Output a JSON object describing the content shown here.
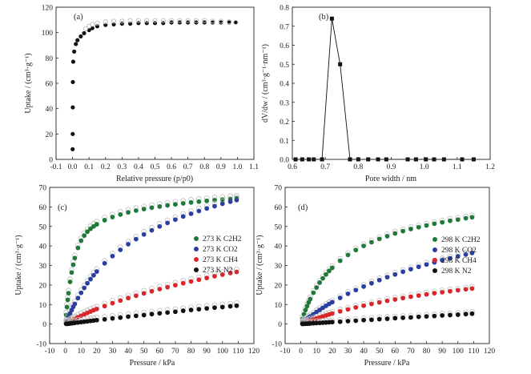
{
  "panels": [
    {
      "letter": "(a)",
      "xlabel": "Relative pressure (p/p0)",
      "ylabel": "Uptake / (cm³·g⁻¹)",
      "xticks": [
        "-0.1",
        "0.0",
        "0.1",
        "0.2",
        "0.3",
        "0.4",
        "0.5",
        "0.6",
        "0.7",
        "0.8",
        "0.9",
        "1.0",
        "1.1"
      ],
      "yticks": [
        "0",
        "20",
        "40",
        "60",
        "80",
        "100",
        "120"
      ]
    },
    {
      "letter": "(b)",
      "xlabel": "Pore width / nm",
      "ylabel": "dV/dw / (cm³·g⁻¹·nm⁻¹)",
      "xticks": [
        "0.6",
        "0.7",
        "0.8",
        "0.9",
        "1.0",
        "1.1",
        "1.2"
      ],
      "yticks": [
        "0.0",
        "0.1",
        "0.2",
        "0.3",
        "0.4",
        "0.5",
        "0.6",
        "0.7",
        "0.8"
      ]
    },
    {
      "letter": "(c)",
      "xlabel": "Pressure / kPa",
      "ylabel": "Uptake / (cm³·g⁻¹)",
      "xticks": [
        "-10",
        "0",
        "10",
        "20",
        "30",
        "40",
        "50",
        "60",
        "70",
        "80",
        "90",
        "100",
        "110",
        "120"
      ],
      "yticks": [
        "-10",
        "0",
        "10",
        "20",
        "30",
        "40",
        "50",
        "60",
        "70"
      ],
      "legend": [
        "273 K C2H2",
        "273 K CO2",
        "273 K CH4",
        "273 K N2"
      ]
    },
    {
      "letter": "(d)",
      "xlabel": "Pressure / kPa",
      "ylabel": "Uptake / (cm³·g⁻¹)",
      "xticks": [
        "-10",
        "0",
        "10",
        "20",
        "30",
        "40",
        "50",
        "60",
        "70",
        "80",
        "90",
        "100",
        "110",
        "120"
      ],
      "yticks": [
        "-10",
        "0",
        "10",
        "20",
        "30",
        "40",
        "50",
        "60",
        "70"
      ],
      "legend": [
        "298 K C2H2",
        "298 K CO2",
        "298 K CH4",
        "298 K N2"
      ]
    }
  ],
  "colors": {
    "black": "#111111",
    "green": "#1f7a3a",
    "blue": "#2a3fa0",
    "red": "#d8262b",
    "open": "#bdbdbd"
  },
  "chart_data": [
    {
      "panel": "a",
      "type": "scatter",
      "xlabel": "Relative pressure (p/p0)",
      "ylabel": "Uptake / (cm³·g⁻¹)",
      "xlim": [
        -0.1,
        1.1
      ],
      "ylim": [
        0,
        120
      ],
      "series": [
        {
          "marker": "filled",
          "color": "#111111",
          "x": [
            0.0005,
            0.001,
            0.0015,
            0.002,
            0.004,
            0.01,
            0.02,
            0.03,
            0.05,
            0.07,
            0.1,
            0.12,
            0.15,
            0.2,
            0.25,
            0.3,
            0.35,
            0.4,
            0.45,
            0.5,
            0.55,
            0.6,
            0.65,
            0.7,
            0.75,
            0.8,
            0.85,
            0.9,
            0.95,
            0.99
          ],
          "y": [
            8,
            20,
            41,
            61,
            77,
            85,
            91,
            94,
            97,
            99.5,
            102,
            103.5,
            105,
            106,
            106.5,
            107,
            107,
            107.5,
            107.5,
            107.5,
            107.5,
            108,
            108,
            108,
            108,
            108,
            108,
            108,
            108,
            108
          ]
        },
        {
          "marker": "open",
          "color": "#bdbdbd",
          "x": [
            0.99,
            0.95,
            0.9,
            0.85,
            0.8,
            0.75,
            0.7,
            0.65,
            0.6,
            0.55,
            0.5,
            0.45,
            0.4,
            0.35,
            0.3,
            0.25,
            0.2,
            0.15,
            0.12,
            0.1,
            0.08
          ],
          "y": [
            108,
            108.5,
            109,
            109,
            109.5,
            109.5,
            109.5,
            109.5,
            109.5,
            109.5,
            109.5,
            109.5,
            109.5,
            109.5,
            109,
            109,
            108.5,
            107.5,
            106.5,
            105,
            103
          ]
        }
      ]
    },
    {
      "panel": "b",
      "type": "line",
      "xlabel": "Pore width / nm",
      "ylabel": "dV/dw / (cm³·g⁻¹·nm⁻¹)",
      "xlim": [
        0.6,
        1.2
      ],
      "ylim": [
        0,
        0.8
      ],
      "series": [
        {
          "marker": "square",
          "color": "#111111",
          "x": [
            0.61,
            0.63,
            0.65,
            0.665,
            0.69,
            0.72,
            0.745,
            0.775,
            0.8,
            0.83,
            0.86,
            0.885,
            0.95,
            0.975,
            1.005,
            1.03,
            1.06,
            1.115,
            1.15
          ],
          "y": [
            0,
            0,
            0,
            0,
            0,
            0.74,
            0.5,
            0,
            0,
            0,
            0,
            0,
            0,
            0,
            0,
            0,
            0,
            0,
            0
          ]
        }
      ]
    },
    {
      "panel": "c",
      "type": "scatter",
      "xlabel": "Pressure / kPa",
      "ylabel": "Uptake / (cm³·g⁻¹)",
      "xlim": [
        -10,
        120
      ],
      "ylim": [
        -10,
        70
      ],
      "legend_position": "center-right",
      "series": [
        {
          "name": "273 K C2H2",
          "color": "#1f7a3a",
          "x": [
            0.5,
            1,
            1.5,
            2,
            3,
            4,
            5,
            6,
            8,
            10,
            12,
            14,
            16,
            18,
            20,
            25,
            30,
            35,
            40,
            45,
            50,
            55,
            60,
            65,
            70,
            75,
            80,
            85,
            90,
            95,
            100,
            105,
            109
          ],
          "y": [
            4.6,
            8.7,
            12.4,
            15.8,
            21.6,
            26.4,
            30.4,
            33.8,
            39.0,
            42.7,
            45.3,
            47.3,
            48.8,
            50.0,
            51.1,
            53.2,
            54.8,
            56.1,
            57.2,
            58.1,
            58.9,
            59.6,
            60.2,
            60.8,
            61.3,
            61.8,
            62.3,
            62.7,
            63.1,
            63.5,
            63.8,
            64.2,
            64.4
          ]
        },
        {
          "name": "273 K CO2",
          "color": "#2a3fa0",
          "x": [
            0.5,
            1,
            2,
            3,
            4,
            5,
            6,
            8,
            10,
            12,
            14,
            16,
            18,
            20,
            25,
            30,
            35,
            40,
            45,
            50,
            55,
            60,
            65,
            70,
            75,
            80,
            85,
            90,
            95,
            100,
            105,
            109
          ],
          "y": [
            0.9,
            1.9,
            3.7,
            5.4,
            7.1,
            8.8,
            10.3,
            13.3,
            16.0,
            18.5,
            20.9,
            23.0,
            25.0,
            26.9,
            31.1,
            34.8,
            38.0,
            40.9,
            43.5,
            45.9,
            48.0,
            50.0,
            51.8,
            53.5,
            55.1,
            56.5,
            57.9,
            59.2,
            60.4,
            61.6,
            62.7,
            63.5
          ]
        },
        {
          "name": "273 K CH4",
          "color": "#d8262b",
          "x": [
            0.5,
            1,
            2,
            3,
            4,
            5,
            6,
            8,
            10,
            12,
            14,
            16,
            18,
            20,
            25,
            30,
            35,
            40,
            45,
            50,
            55,
            60,
            65,
            70,
            75,
            80,
            85,
            90,
            95,
            100,
            105,
            109
          ],
          "y": [
            0.2,
            0.5,
            0.9,
            1.4,
            1.8,
            2.2,
            2.6,
            3.5,
            4.2,
            5.0,
            5.7,
            6.4,
            7.1,
            7.7,
            9.2,
            10.7,
            12.0,
            13.3,
            14.5,
            15.7,
            16.8,
            17.9,
            18.9,
            19.9,
            20.9,
            21.8,
            22.7,
            23.6,
            24.5,
            25.3,
            26.1,
            26.7
          ]
        },
        {
          "name": "273 K N2",
          "color": "#111111",
          "x": [
            0.5,
            1,
            2,
            3,
            4,
            5,
            6,
            8,
            10,
            12,
            14,
            16,
            18,
            20,
            25,
            30,
            35,
            40,
            45,
            50,
            55,
            60,
            65,
            70,
            75,
            80,
            85,
            90,
            95,
            100,
            105,
            109
          ],
          "y": [
            0.1,
            0.1,
            0.2,
            0.3,
            0.4,
            0.5,
            0.6,
            0.8,
            1.0,
            1.2,
            1.4,
            1.6,
            1.8,
            2.0,
            2.4,
            2.9,
            3.3,
            3.8,
            4.2,
            4.6,
            5.1,
            5.5,
            5.9,
            6.3,
            6.8,
            7.2,
            7.6,
            8.0,
            8.4,
            8.7,
            9.1,
            9.4
          ]
        }
      ]
    },
    {
      "panel": "d",
      "type": "scatter",
      "xlabel": "Pressure / kPa",
      "ylabel": "Uptake / (cm³·g⁻¹)",
      "xlim": [
        -10,
        120
      ],
      "ylim": [
        -10,
        70
      ],
      "legend_position": "center-right",
      "series": [
        {
          "name": "298 K C2H2",
          "color": "#1f7a3a",
          "x": [
            1,
            2,
            3,
            4,
            5,
            6,
            8,
            10,
            12,
            14,
            16,
            18,
            20,
            25,
            30,
            35,
            40,
            45,
            50,
            55,
            60,
            65,
            70,
            75,
            80,
            85,
            90,
            95,
            100,
            105,
            109
          ],
          "y": [
            2.6,
            5.0,
            7.2,
            9.2,
            11.1,
            12.8,
            16.0,
            18.7,
            21.2,
            23.4,
            25.4,
            27.2,
            28.8,
            32.4,
            35.4,
            37.9,
            40.0,
            41.9,
            43.6,
            45.0,
            46.4,
            47.6,
            48.7,
            49.6,
            50.5,
            51.4,
            52.1,
            52.9,
            53.5,
            54.2,
            54.7
          ]
        },
        {
          "name": "298 K CO2",
          "color": "#2a3fa0",
          "x": [
            1,
            2,
            3,
            4,
            5,
            6,
            8,
            10,
            12,
            14,
            16,
            18,
            20,
            25,
            30,
            35,
            40,
            45,
            50,
            55,
            60,
            65,
            70,
            75,
            80,
            85,
            90,
            95,
            100,
            105,
            109
          ],
          "y": [
            0.7,
            1.4,
            2.0,
            2.7,
            3.3,
            3.9,
            5.0,
            6.2,
            7.2,
            8.3,
            9.3,
            10.3,
            11.2,
            13.4,
            15.5,
            17.4,
            19.2,
            20.9,
            22.5,
            24.0,
            25.4,
            26.8,
            28.1,
            29.3,
            30.5,
            31.6,
            32.7,
            33.7,
            34.7,
            35.6,
            36.4
          ]
        },
        {
          "name": "298 K CH4",
          "color": "#d8262b",
          "x": [
            1,
            2,
            3,
            4,
            5,
            6,
            8,
            10,
            12,
            14,
            16,
            18,
            20,
            25,
            30,
            35,
            40,
            45,
            50,
            55,
            60,
            65,
            70,
            75,
            80,
            85,
            90,
            95,
            100,
            105,
            109
          ],
          "y": [
            0.3,
            0.6,
            0.9,
            1.2,
            1.5,
            1.8,
            2.3,
            2.9,
            3.4,
            3.9,
            4.4,
            4.9,
            5.4,
            6.5,
            7.5,
            8.5,
            9.4,
            10.3,
            11.1,
            11.9,
            12.6,
            13.3,
            14.0,
            14.6,
            15.2,
            15.8,
            16.3,
            16.8,
            17.3,
            17.8,
            18.2
          ]
        },
        {
          "name": "298 K N2",
          "color": "#111111",
          "x": [
            1,
            2,
            3,
            4,
            5,
            6,
            8,
            10,
            12,
            14,
            16,
            18,
            20,
            25,
            30,
            35,
            40,
            45,
            50,
            55,
            60,
            65,
            70,
            75,
            80,
            85,
            90,
            95,
            100,
            105,
            109
          ],
          "y": [
            0.05,
            0.1,
            0.15,
            0.2,
            0.25,
            0.3,
            0.4,
            0.5,
            0.6,
            0.7,
            0.8,
            0.9,
            1.0,
            1.2,
            1.5,
            1.7,
            2.0,
            2.2,
            2.5,
            2.7,
            3.0,
            3.2,
            3.4,
            3.7,
            3.9,
            4.1,
            4.4,
            4.6,
            4.8,
            5.1,
            5.3
          ]
        }
      ]
    }
  ]
}
